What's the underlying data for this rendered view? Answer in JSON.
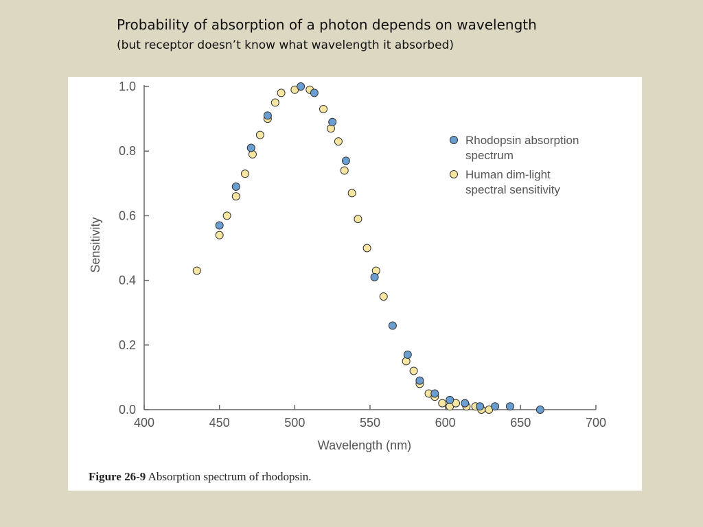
{
  "slide": {
    "title": "Probability of absorption of a photon depends on wavelength",
    "subtitle": "(but receptor doesn’t know what wavelength it absorbed)"
  },
  "figure": {
    "caption_label": "Figure 26-9",
    "caption_text": " Absorption spectrum of rhodopsin."
  },
  "chart_data": {
    "type": "scatter",
    "xlabel": "Wavelength (nm)",
    "ylabel": "Sensitivity",
    "xlim": [
      400,
      700
    ],
    "ylim": [
      0,
      1.0
    ],
    "xticks": [
      400,
      450,
      500,
      550,
      600,
      650,
      700
    ],
    "xtick_labels": [
      "400",
      "450",
      "500",
      "550",
      "600",
      "650",
      "700"
    ],
    "yticks": [
      0,
      0.2,
      0.4,
      0.6,
      0.8,
      1.0
    ],
    "ytick_labels": [
      "0.0",
      "0.2",
      "0.4",
      "0.6",
      "0.8",
      "1.0"
    ],
    "grid": false,
    "legend_position": "top-right",
    "series": [
      {
        "name": "Human dim-light spectral sensitivity",
        "color": "#f7e6a2",
        "points": [
          [
            435,
            0.43
          ],
          [
            450,
            0.54
          ],
          [
            455,
            0.6
          ],
          [
            461,
            0.66
          ],
          [
            467,
            0.73
          ],
          [
            472,
            0.79
          ],
          [
            477,
            0.85
          ],
          [
            482,
            0.9
          ],
          [
            487,
            0.95
          ],
          [
            491,
            0.98
          ],
          [
            500,
            0.99
          ],
          [
            510,
            0.99
          ],
          [
            519,
            0.93
          ],
          [
            524,
            0.87
          ],
          [
            529,
            0.83
          ],
          [
            533,
            0.74
          ],
          [
            538,
            0.67
          ],
          [
            542,
            0.59
          ],
          [
            548,
            0.5
          ],
          [
            554,
            0.43
          ],
          [
            559,
            0.35
          ],
          [
            574,
            0.15
          ],
          [
            579,
            0.12
          ],
          [
            583,
            0.08
          ],
          [
            589,
            0.05
          ],
          [
            593,
            0.04
          ],
          [
            598,
            0.02
          ],
          [
            603,
            0.01
          ],
          [
            607,
            0.02
          ],
          [
            614,
            0.01
          ],
          [
            620,
            0.01
          ],
          [
            624,
            0.0
          ],
          [
            629,
            0.0
          ]
        ]
      },
      {
        "name": "Rhodopsin absorption spectrum",
        "color": "#6a9ed0",
        "points": [
          [
            450,
            0.57
          ],
          [
            461,
            0.69
          ],
          [
            471,
            0.81
          ],
          [
            482,
            0.91
          ],
          [
            504,
            1.0
          ],
          [
            513,
            0.98
          ],
          [
            525,
            0.89
          ],
          [
            534,
            0.77
          ],
          [
            553,
            0.41
          ],
          [
            565,
            0.26
          ],
          [
            575,
            0.17
          ],
          [
            583,
            0.09
          ],
          [
            593,
            0.05
          ],
          [
            603,
            0.03
          ],
          [
            613,
            0.02
          ],
          [
            623,
            0.01
          ],
          [
            633,
            0.01
          ],
          [
            643,
            0.01
          ],
          [
            663,
            0.0
          ]
        ]
      }
    ]
  }
}
